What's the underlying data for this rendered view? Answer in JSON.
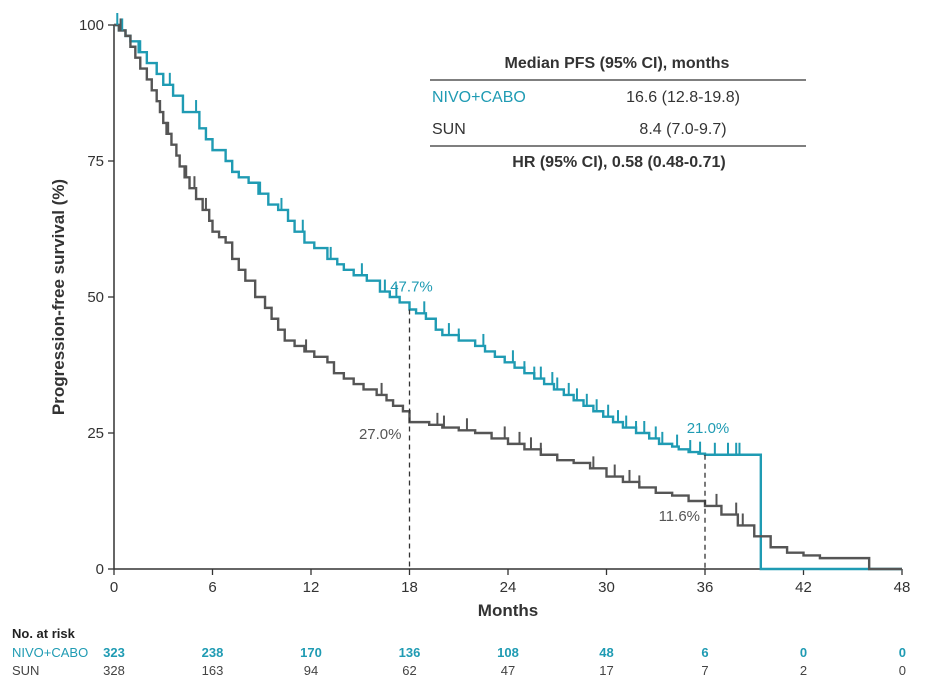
{
  "colors": {
    "nivo_cabo": "#1f9bb3",
    "sun": "#555555",
    "axis": "#333333",
    "text": "#333333"
  },
  "chart_data": {
    "type": "line",
    "subtype": "kaplan-meier step",
    "xlabel": "Months",
    "ylabel": "Progression-free survival (%)",
    "xlim": [
      0,
      48
    ],
    "ylim": [
      0,
      100
    ],
    "x_ticks": [
      0,
      6,
      12,
      18,
      24,
      30,
      36,
      42,
      48
    ],
    "y_ticks": [
      0,
      25,
      50,
      75,
      100
    ],
    "grid": false,
    "series": [
      {
        "name": "NIVO+CABO",
        "color": "#1f9bb3",
        "x": [
          0,
          0.3,
          0.7,
          1.0,
          1.5,
          2.0,
          2.6,
          3.0,
          3.6,
          4.2,
          5.2,
          5.6,
          6.0,
          6.8,
          7.2,
          7.6,
          8.2,
          8.8,
          9.4,
          10.0,
          10.6,
          11.0,
          11.6,
          12.2,
          13.0,
          13.6,
          14.0,
          14.6,
          15.4,
          16.2,
          16.8,
          17.4,
          18.0,
          18.4,
          19.0,
          19.6,
          20.0,
          21.0,
          22.0,
          22.6,
          23.2,
          23.8,
          24.4,
          25.0,
          25.6,
          26.2,
          26.8,
          27.4,
          28.0,
          28.6,
          29.2,
          29.8,
          30.4,
          31.0,
          31.8,
          32.6,
          33.2,
          34.0,
          34.4,
          35.0,
          35.6,
          36.0,
          36.6,
          37.2,
          38.0,
          39.3,
          39.4,
          48
        ],
        "y": [
          100,
          99,
          98,
          97,
          95,
          93,
          91,
          89,
          87,
          84,
          81,
          79,
          77,
          75,
          73,
          72,
          71,
          69,
          67,
          66,
          64,
          62,
          60,
          59,
          57,
          56,
          55,
          54,
          53,
          51,
          50,
          49,
          47.7,
          47,
          46,
          44,
          43,
          42,
          41,
          40,
          39,
          38,
          37,
          36,
          35,
          34,
          33,
          32,
          31,
          30,
          29,
          28,
          27,
          26,
          25,
          24,
          23,
          22.5,
          22,
          21.5,
          21.2,
          21,
          21,
          21,
          21,
          21,
          0,
          0
        ],
        "annotation": {
          "x": 18,
          "y": 47.7,
          "label": "47.7%"
        },
        "annotation_36": {
          "x": 36,
          "y": 21.0,
          "label": "21.0%"
        }
      },
      {
        "name": "SUN",
        "color": "#555555",
        "x": [
          0,
          0.3,
          0.7,
          1.0,
          1.3,
          1.6,
          2.0,
          2.3,
          2.6,
          2.8,
          3.0,
          3.2,
          3.5,
          3.8,
          4.0,
          4.3,
          4.6,
          5.0,
          5.4,
          5.8,
          6.0,
          6.4,
          6.8,
          7.2,
          7.6,
          8.0,
          8.6,
          9.2,
          9.6,
          10.0,
          10.4,
          11.0,
          11.6,
          12.2,
          13.0,
          13.4,
          14.0,
          14.6,
          15.2,
          16.0,
          16.6,
          17.0,
          17.6,
          18.0,
          18.6,
          19.2,
          20.0,
          21.0,
          22.0,
          23.0,
          24.0,
          25.0,
          26.0,
          27.0,
          28.0,
          29.0,
          30.0,
          31.0,
          32.0,
          33.0,
          34.0,
          35.0,
          36.0,
          37.0,
          38.0,
          39.0,
          40.0,
          41.0,
          42.0,
          43.0,
          44.0,
          45.0,
          46.0,
          48
        ],
        "y": [
          100,
          99,
          98,
          96,
          94,
          92,
          90,
          88,
          86,
          84,
          82,
          80,
          78,
          76,
          74,
          72,
          70,
          68,
          66,
          64,
          62,
          61,
          60,
          57,
          55,
          53,
          50,
          48,
          46,
          44,
          42,
          41,
          40,
          39,
          38,
          36,
          35,
          34,
          33,
          32,
          31,
          30,
          29,
          27,
          27,
          26.5,
          26,
          25.5,
          25,
          24,
          23,
          22,
          21,
          20,
          19.5,
          18.5,
          17,
          16,
          15,
          14,
          13.5,
          12.5,
          11.6,
          10,
          8,
          6,
          4,
          3,
          2.5,
          2,
          2,
          2,
          0,
          0
        ],
        "annotation": {
          "x": 18,
          "y": 27.0,
          "label": "27.0%"
        },
        "annotation_36": {
          "x": 36,
          "y": 11.6,
          "label": "11.6%"
        }
      }
    ],
    "censor_marks": {
      "nivo_cabo_x": [
        0.2,
        0.5,
        1.6,
        2.6,
        3.4,
        5.0,
        8.9,
        10.2,
        11.5,
        13.2,
        15.1,
        16.5,
        17.2,
        18.9,
        20.4,
        21.0,
        22.5,
        24.3,
        25.0,
        25.6,
        26.0,
        26.7,
        27.0,
        27.7,
        28.2,
        28.8,
        29.4,
        30.1,
        30.7,
        31.2,
        31.8,
        32.3,
        33.0,
        33.4,
        34.3,
        35.1,
        35.7,
        36.6,
        37.4,
        37.9,
        38.1
      ],
      "sun_x": [
        0.4,
        2.8,
        3.3,
        4.4,
        4.9,
        5.6,
        11.7,
        16.3,
        19.7,
        20.1,
        21.5,
        23.8,
        24.7,
        25.4,
        26.0,
        29.2,
        30.5,
        31.4,
        32.0,
        36.7,
        37.9,
        38.3
      ]
    },
    "table": {
      "header": "Median PFS (95% CI), months",
      "rows": [
        {
          "label": "NIVO+CABO",
          "value": "16.6 (12.8-19.8)"
        },
        {
          "label": "SUN",
          "value": "8.4 (7.0-9.7)"
        }
      ],
      "footer": "HR (95% CI), 0.58 (0.48-0.71)"
    },
    "risk_table": {
      "title": "No. at risk",
      "time_points": [
        0,
        6,
        12,
        18,
        24,
        30,
        36,
        42,
        48
      ],
      "rows": [
        {
          "name": "NIVO+CABO",
          "values": [
            "323",
            "238",
            "170",
            "136",
            "108",
            "48",
            "6",
            "0",
            "0"
          ]
        },
        {
          "name": "SUN",
          "values": [
            "328",
            "163",
            "94",
            "62",
            "47",
            "17",
            "7",
            "2",
            "0"
          ]
        }
      ]
    }
  }
}
